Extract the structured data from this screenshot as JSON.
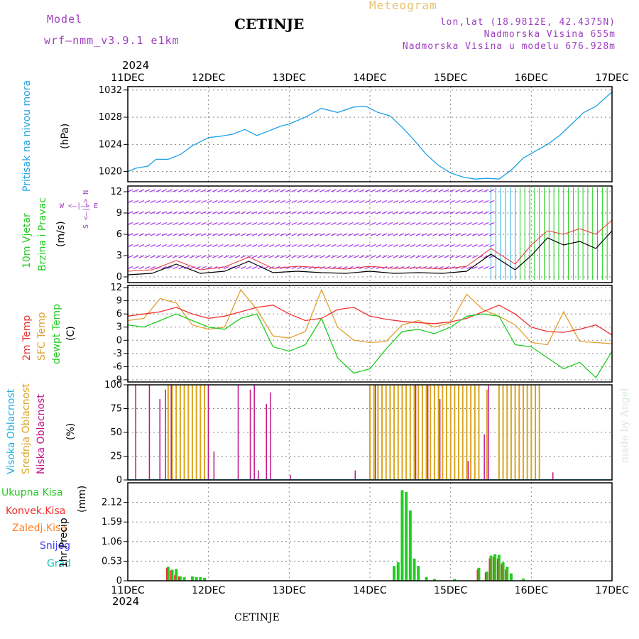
{
  "header": {
    "model_label": "Model",
    "model_name": "wrf—nmm_v3.9.1  e1km",
    "title": "CETINJE",
    "meteogram": "Meteogram",
    "lonlat": "lon,lat (18.9812E, 42.4375N)",
    "elevation": "Nadmorska Visina 655m",
    "model_elevation": "Nadmorska Visina u modelu 676.928m",
    "footer_title": "CETINJE",
    "credit": "made by Angel"
  },
  "colors": {
    "pressure": "#1ea0e6",
    "wind_purple": "#a020f0",
    "wind_green": "#22cc22",
    "t2m": "#ee3030",
    "sfc": "#e0a030",
    "dew": "#22cc22",
    "high_cloud": "#20b0e0",
    "mid_cloud": "#daa520",
    "low_cloud": "#c0148c",
    "precip_total": "#22cc22",
    "precip_conv": "#ee3030",
    "precip_froz": "#ff7f27",
    "snow": "#4040ff",
    "graupel": "#20c0c0"
  },
  "chart_data": [
    {
      "type": "line",
      "panel": "pressure",
      "year_label": "2024",
      "x_labels": [
        "11DEC",
        "12DEC",
        "13DEC",
        "14DEC",
        "15DEC",
        "16DEC",
        "17DEC"
      ],
      "ylabel_main": "Pritisak na nivou mora",
      "ylabel_unit": "(hPa)",
      "yticks": [
        1020,
        1024,
        1028,
        1032
      ],
      "ylim": [
        1018.5,
        1032.5
      ],
      "series": [
        {
          "x": [
            0,
            0.1,
            0.25,
            0.35,
            0.5,
            0.65,
            0.8,
            1.0,
            1.15,
            1.3,
            1.45,
            1.6,
            1.75,
            1.9,
            2.0,
            2.2,
            2.4,
            2.6,
            2.8,
            2.95,
            3.1,
            3.25,
            3.4,
            3.55,
            3.7,
            3.85,
            4.0,
            4.15,
            4.3,
            4.45,
            4.6,
            4.75,
            4.9,
            5.05,
            5.2,
            5.35,
            5.5,
            5.65,
            5.8,
            5.95,
            6.0
          ],
          "y": [
            1020,
            1020.5,
            1020.8,
            1021.8,
            1021.8,
            1022.5,
            1023.8,
            1025,
            1025.2,
            1025.5,
            1026.2,
            1025.3,
            1026,
            1026.7,
            1027,
            1028,
            1029.3,
            1028.7,
            1029.5,
            1029.6,
            1028.7,
            1028.2,
            1026.5,
            1024.6,
            1022.5,
            1020.9,
            1019.8,
            1019.2,
            1018.9,
            1019,
            1018.9,
            1020.2,
            1022,
            1023,
            1024,
            1025.3,
            1027,
            1028.7,
            1029.6,
            1031.2,
            1031.7
          ]
        }
      ]
    },
    {
      "type": "line",
      "panel": "wind",
      "ylabel_main": "10m Vjetar",
      "ylabel_sub": "Brzina i Pravac",
      "ylabel_unit": "(m/s)",
      "compass": "W <—|—> E",
      "compass2": "S <—|—> N",
      "yticks": [
        0,
        3,
        6,
        9,
        12
      ],
      "ylim": [
        -0.8,
        12.8
      ],
      "series": [
        {
          "x": [
            0,
            0.3,
            0.6,
            0.9,
            1.2,
            1.5,
            1.8,
            2.1,
            2.4,
            2.7,
            3.0,
            3.3,
            3.6,
            3.9,
            4.2,
            4.5,
            4.8,
            5.0,
            5.2,
            5.4,
            5.6,
            5.8,
            6.0
          ],
          "y": [
            0.3,
            0.5,
            1.8,
            0.5,
            0.8,
            2.2,
            0.6,
            0.8,
            0.6,
            0.5,
            0.8,
            0.5,
            0.6,
            0.5,
            0.8,
            3.2,
            1.0,
            3.0,
            5.5,
            4.5,
            5.0,
            4.0,
            6.5
          ]
        },
        {
          "x": [
            0,
            0.3,
            0.6,
            0.9,
            1.2,
            1.5,
            1.8,
            2.1,
            2.4,
            2.7,
            3.0,
            3.3,
            3.6,
            3.9,
            4.2,
            4.5,
            4.8,
            5.0,
            5.2,
            5.4,
            5.6,
            5.8,
            6.0
          ],
          "y": [
            0.8,
            1.0,
            2.3,
            1.0,
            1.4,
            2.8,
            1.2,
            1.5,
            1.3,
            1.1,
            1.5,
            1.2,
            1.3,
            1.1,
            1.5,
            4.0,
            1.8,
            4.5,
            6.5,
            6.0,
            6.8,
            6.0,
            8.0
          ]
        }
      ]
    },
    {
      "type": "line",
      "panel": "temperature",
      "ylabel_1": "2m Temp",
      "ylabel_2": "SFC Temp",
      "ylabel_3": "dewpt Temp",
      "ylabel_unit": "(C)",
      "yticks": [
        -9,
        -6,
        -3,
        0,
        3,
        6,
        9,
        12
      ],
      "ylim": [
        -9.5,
        12.5
      ],
      "series": [
        {
          "name": "2m Temp",
          "x": [
            0,
            0.2,
            0.4,
            0.6,
            0.8,
            1.0,
            1.2,
            1.4,
            1.6,
            1.8,
            2.0,
            2.2,
            2.4,
            2.6,
            2.8,
            3.0,
            3.2,
            3.4,
            3.6,
            3.8,
            4.0,
            4.2,
            4.4,
            4.6,
            4.8,
            5.0,
            5.2,
            5.4,
            5.6,
            5.8,
            6.0
          ],
          "y": [
            5.5,
            6.0,
            6.5,
            7.5,
            6.0,
            5.0,
            5.5,
            6.5,
            7.5,
            8.0,
            6.0,
            4.5,
            5.0,
            7.0,
            7.5,
            5.5,
            4.8,
            4.3,
            4.0,
            3.8,
            4.2,
            5.0,
            6.5,
            8.0,
            6.0,
            3.0,
            2.0,
            1.8,
            2.5,
            3.5,
            1.2
          ]
        },
        {
          "name": "SFC Temp",
          "x": [
            0,
            0.2,
            0.4,
            0.6,
            0.8,
            1.0,
            1.2,
            1.4,
            1.6,
            1.8,
            2.0,
            2.2,
            2.4,
            2.6,
            2.8,
            3.0,
            3.2,
            3.4,
            3.6,
            3.8,
            4.0,
            4.2,
            4.4,
            4.6,
            4.8,
            5.0,
            5.2,
            5.4,
            5.6,
            5.8,
            6.0
          ],
          "y": [
            4.5,
            5.0,
            9.5,
            8.5,
            3.5,
            2.5,
            3.0,
            11.5,
            7.0,
            1.0,
            0.5,
            2.0,
            11.5,
            3.0,
            0.0,
            -0.5,
            -0.3,
            3.5,
            4.5,
            3.0,
            4.0,
            10.5,
            7.0,
            5.5,
            3.5,
            -0.5,
            -1.0,
            6.5,
            -0.3,
            -0.5,
            -0.8
          ]
        },
        {
          "name": "dewpt Temp",
          "x": [
            0,
            0.2,
            0.4,
            0.6,
            0.8,
            1.0,
            1.2,
            1.4,
            1.6,
            1.8,
            2.0,
            2.2,
            2.4,
            2.6,
            2.8,
            3.0,
            3.2,
            3.4,
            3.6,
            3.8,
            4.0,
            4.2,
            4.4,
            4.6,
            4.8,
            5.0,
            5.2,
            5.4,
            5.6,
            5.8,
            6.0
          ],
          "y": [
            3.5,
            3.0,
            4.5,
            6.0,
            4.5,
            3.0,
            2.5,
            5.0,
            6.0,
            -1.5,
            -2.5,
            -1.0,
            5.0,
            -4.0,
            -7.5,
            -6.5,
            -2.0,
            2.0,
            2.5,
            1.5,
            3.0,
            5.5,
            6.0,
            5.5,
            -1.0,
            -1.5,
            -4.0,
            -6.5,
            -5.0,
            -8.5,
            -2.5
          ]
        }
      ]
    },
    {
      "type": "bar",
      "panel": "clouds",
      "ylabel_1": "Visoka Oblacnost",
      "ylabel_2": "Srednja Oblacnost",
      "ylabel_3": "Niska Oblacnost",
      "ylabel_unit": "(%)",
      "yticks": [
        0,
        25,
        50,
        75,
        100
      ],
      "ylim": [
        0,
        100
      ],
      "series": [
        {
          "name": "Srednja Oblacnost",
          "x": [
            0.5,
            0.55,
            0.6,
            0.65,
            0.7,
            0.75,
            0.8,
            0.85,
            0.9,
            0.95,
            3.0,
            3.05,
            3.1,
            3.15,
            3.2,
            3.25,
            3.3,
            3.35,
            3.4,
            3.45,
            3.5,
            3.55,
            3.6,
            3.65,
            3.7,
            3.75,
            3.8,
            3.85,
            3.9,
            3.95,
            4.0,
            4.05,
            4.1,
            4.15,
            4.2,
            4.25,
            4.3,
            4.35,
            4.45,
            4.6,
            4.65,
            4.7,
            4.75,
            4.8,
            4.85,
            4.9,
            4.95,
            5.0,
            5.05,
            5.1
          ],
          "y": [
            100,
            100,
            100,
            100,
            100,
            100,
            100,
            100,
            100,
            100,
            100,
            100,
            100,
            100,
            100,
            100,
            100,
            100,
            100,
            100,
            100,
            100,
            100,
            100,
            100,
            100,
            100,
            100,
            100,
            100,
            100,
            100,
            100,
            100,
            100,
            100,
            100,
            100,
            95,
            100,
            100,
            100,
            100,
            100,
            100,
            100,
            100,
            100,
            100,
            100
          ]
        },
        {
          "name": "Niska Oblacnost",
          "x": [
            0.08,
            0.25,
            0.38,
            0.45,
            0.52,
            0.98,
            1.05,
            1.35,
            1.5,
            1.55,
            1.6,
            1.7,
            1.75,
            2.0,
            2.8,
            3.05,
            3.55,
            3.7,
            3.85,
            4.2,
            4.4,
            4.45,
            5.25
          ],
          "y": [
            100,
            100,
            85,
            95,
            100,
            100,
            30,
            100,
            95,
            100,
            10,
            80,
            92,
            5,
            10,
            100,
            100,
            100,
            85,
            20,
            48,
            100,
            8
          ]
        }
      ]
    },
    {
      "type": "bar",
      "panel": "precip",
      "ylabel_main": "1hr Precip",
      "ylabel_unit": "(mm)",
      "legend": [
        "Ukupna Kisa",
        "Konvek.Kisa",
        "Zaledj.Kisa",
        "Snijeg",
        "Grad"
      ],
      "yticks": [
        0,
        0.53,
        1.06,
        1.59,
        2.12
      ],
      "ytick_labels": [
        "0",
        "0.53",
        "1.06",
        "1.59",
        "2.12"
      ],
      "ylim": [
        0,
        2.65
      ],
      "series": [
        {
          "name": "Ukupna Kisa",
          "x": [
            0.5,
            0.55,
            0.6,
            0.65,
            0.7,
            0.8,
            0.85,
            0.9,
            0.95,
            3.3,
            3.35,
            3.4,
            3.45,
            3.5,
            3.55,
            3.6,
            3.7,
            3.8,
            4.05,
            4.35,
            4.45,
            4.5,
            4.55,
            4.6,
            4.65,
            4.7,
            4.75,
            4.9
          ],
          "y": [
            0.38,
            0.3,
            0.32,
            0.12,
            0.1,
            0.12,
            0.1,
            0.1,
            0.08,
            0.4,
            0.5,
            2.45,
            2.4,
            1.9,
            0.6,
            0.4,
            0.1,
            0.05,
            0.05,
            0.35,
            0.25,
            0.68,
            0.72,
            0.7,
            0.5,
            0.38,
            0.2,
            0.06
          ]
        },
        {
          "name": "Konvek.Kisa",
          "x": [
            0.5,
            0.55,
            0.6,
            0.65,
            4.35,
            4.45,
            4.5,
            4.55,
            4.6,
            4.65,
            4.7
          ],
          "y": [
            0.35,
            0.28,
            0.15,
            0.12,
            0.3,
            0.22,
            0.6,
            0.65,
            0.6,
            0.45,
            0.3
          ]
        }
      ]
    }
  ]
}
